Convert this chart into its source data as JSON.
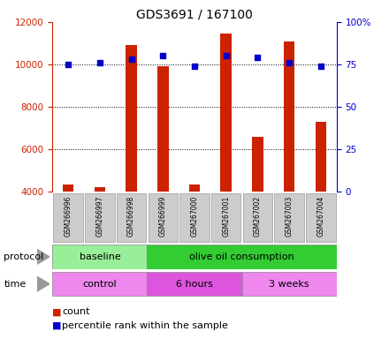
{
  "title": "GDS3691 / 167100",
  "samples": [
    "GSM266996",
    "GSM266997",
    "GSM266998",
    "GSM266999",
    "GSM267000",
    "GSM267001",
    "GSM267002",
    "GSM267003",
    "GSM267004"
  ],
  "counts": [
    4350,
    4200,
    10900,
    9900,
    4350,
    11450,
    6600,
    11100,
    7300
  ],
  "percentile_ranks": [
    75,
    76,
    78,
    80,
    74,
    80,
    79,
    76,
    74
  ],
  "protocol_groups": [
    {
      "label": "baseline",
      "start": 0,
      "end": 3,
      "color": "#99ee99"
    },
    {
      "label": "olive oil consumption",
      "start": 3,
      "end": 9,
      "color": "#33cc33"
    }
  ],
  "time_groups": [
    {
      "label": "control",
      "start": 0,
      "end": 3,
      "color": "#ee88ee"
    },
    {
      "label": "6 hours",
      "start": 3,
      "end": 6,
      "color": "#dd55dd"
    },
    {
      "label": "3 weeks",
      "start": 6,
      "end": 9,
      "color": "#ee88ee"
    }
  ],
  "bar_color": "#cc2200",
  "dot_color": "#0000cc",
  "ylim_left": [
    4000,
    12000
  ],
  "ylim_right": [
    0,
    100
  ],
  "yticks_left": [
    4000,
    6000,
    8000,
    10000,
    12000
  ],
  "yticks_right": [
    0,
    25,
    50,
    75,
    100
  ],
  "ytick_labels_right": [
    "0",
    "25",
    "50",
    "75",
    "100%"
  ],
  "grid_values": [
    6000,
    8000,
    10000
  ],
  "left_axis_color": "#cc2200",
  "right_axis_color": "#0000cc",
  "legend_count_label": "count",
  "legend_pct_label": "percentile rank within the sample",
  "protocol_label": "protocol",
  "time_label": "time",
  "label_box_color": "#cccccc",
  "label_box_edge": "#999999",
  "bar_width": 0.35
}
